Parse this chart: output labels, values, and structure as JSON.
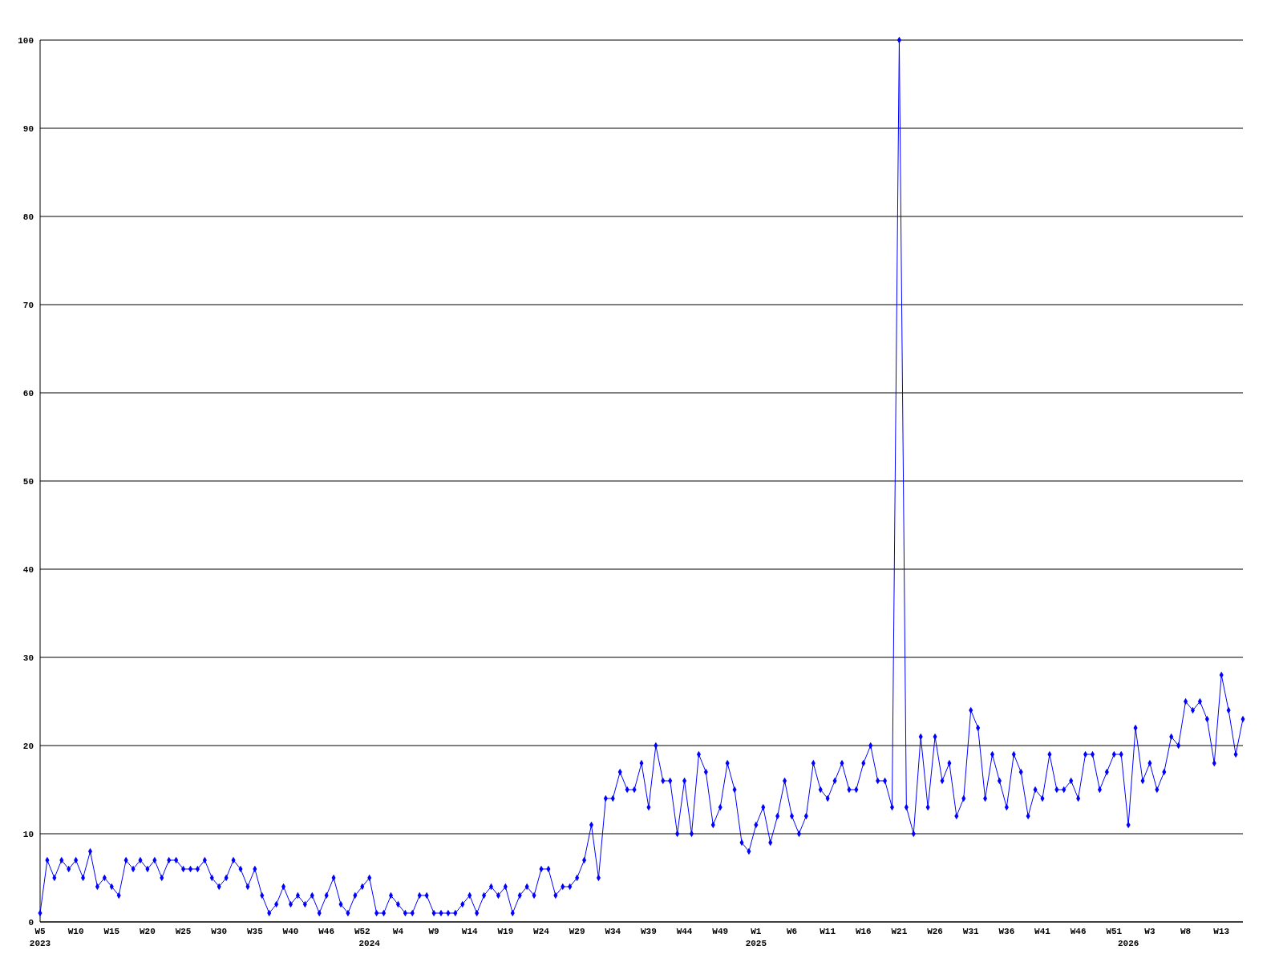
{
  "chart_data": {
    "type": "line",
    "categories": [
      "W5\n2023",
      null,
      null,
      null,
      null,
      "W10",
      null,
      null,
      null,
      null,
      "W15",
      null,
      null,
      null,
      null,
      "W20",
      null,
      null,
      null,
      null,
      "W25",
      null,
      null,
      null,
      null,
      "W30",
      null,
      null,
      null,
      null,
      "W35",
      null,
      null,
      null,
      null,
      "W40",
      null,
      null,
      null,
      null,
      "W46",
      null,
      null,
      null,
      null,
      "W52",
      "\n2024",
      null,
      null,
      null,
      "W4",
      null,
      null,
      null,
      null,
      "W9",
      null,
      null,
      null,
      null,
      "W14",
      null,
      null,
      null,
      null,
      "W19",
      null,
      null,
      null,
      null,
      "W24",
      null,
      null,
      null,
      null,
      "W29",
      null,
      null,
      null,
      null,
      "W34",
      null,
      null,
      null,
      null,
      "W39",
      null,
      null,
      null,
      null,
      "W44",
      null,
      null,
      null,
      null,
      "W49",
      null,
      null,
      null,
      null,
      "W1\n2025",
      null,
      null,
      null,
      null,
      "W6",
      null,
      null,
      null,
      null,
      "W11",
      null,
      null,
      null,
      null,
      "W16",
      null,
      null,
      null,
      null,
      "W21",
      null,
      null,
      null,
      null,
      "W26",
      null,
      null,
      null,
      null,
      "W31",
      null,
      null,
      null,
      null,
      "W36",
      null,
      null,
      null,
      null,
      "W41",
      null,
      null,
      null,
      null,
      "W46",
      null,
      null,
      null,
      null,
      "W51",
      null,
      "\n2026",
      null,
      null,
      "W3",
      null,
      null,
      null,
      null,
      "W8",
      null,
      null,
      null,
      null,
      "W13",
      null,
      null,
      null
    ],
    "series": [
      {
        "color": "#0000ff",
        "values": [
          1,
          7,
          5,
          7,
          6,
          7,
          5,
          8,
          4,
          5,
          4,
          3,
          7,
          6,
          7,
          6,
          7,
          5,
          7,
          7,
          6,
          6,
          6,
          7,
          5,
          4,
          5,
          7,
          6,
          4,
          6,
          3,
          1,
          2,
          4,
          2,
          3,
          2,
          3,
          1,
          3,
          5,
          2,
          1,
          3,
          4,
          5,
          1,
          1,
          3,
          2,
          1,
          1,
          3,
          3,
          1,
          1,
          1,
          1,
          2,
          3,
          1,
          3,
          4,
          3,
          4,
          1,
          3,
          4,
          3,
          6,
          6,
          3,
          4,
          4,
          5,
          7,
          11,
          5,
          14,
          14,
          17,
          15,
          15,
          18,
          13,
          20,
          16,
          16,
          10,
          16,
          10,
          19,
          17,
          11,
          13,
          18,
          15,
          9,
          8,
          11,
          13,
          9,
          12,
          16,
          12,
          10,
          12,
          18,
          15,
          14,
          16,
          18,
          15,
          15,
          18,
          20,
          16,
          16,
          13,
          100,
          13,
          10,
          21,
          13,
          21,
          16,
          18,
          12,
          14,
          24,
          22,
          14,
          19,
          16,
          13,
          19,
          17,
          12,
          15,
          14,
          19,
          15,
          15,
          16,
          14,
          19,
          19,
          15,
          17,
          19,
          19,
          11,
          22,
          16,
          18,
          15,
          17,
          21,
          20,
          25,
          24,
          25,
          23,
          18,
          28,
          24,
          19,
          23
        ]
      }
    ],
    "ylim": [
      0,
      100
    ],
    "yticks": [
      0,
      10,
      20,
      30,
      40,
      50,
      60,
      70,
      80,
      90,
      100
    ],
    "grid": "y",
    "marker": "diamond",
    "line_style": "solid"
  }
}
